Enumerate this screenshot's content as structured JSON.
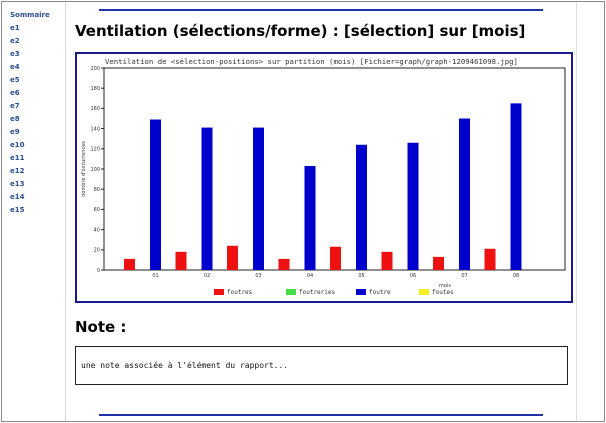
{
  "sidebar": {
    "items": [
      {
        "label": "Sommaire"
      },
      {
        "label": "e1"
      },
      {
        "label": "e2"
      },
      {
        "label": "e3"
      },
      {
        "label": "e4"
      },
      {
        "label": "e5"
      },
      {
        "label": "e6"
      },
      {
        "label": "e7"
      },
      {
        "label": "e8"
      },
      {
        "label": "e9"
      },
      {
        "label": "e10"
      },
      {
        "label": "e11"
      },
      {
        "label": "e12"
      },
      {
        "label": "e13"
      },
      {
        "label": "e14"
      },
      {
        "label": "e15"
      }
    ]
  },
  "main": {
    "title": "Ventilation (sélections/forme) : [sélection] sur [mois]"
  },
  "chart_data": {
    "type": "bar",
    "title": "Ventilation de <sélection-positions> sur partition (mois) [Fichier=graph/graph-1209461098.jpg]",
    "xlabel": "mois",
    "ylabel": "nombre d'occurrences",
    "ylim": [
      0,
      200
    ],
    "yticks": [
      0,
      20,
      40,
      60,
      80,
      100,
      120,
      140,
      160,
      180,
      200
    ],
    "categories": [
      "01",
      "02",
      "03",
      "04",
      "05",
      "06",
      "07",
      "08"
    ],
    "series": [
      {
        "name": "foutres",
        "color": "#ee1111",
        "values": [
          11,
          18,
          24,
          11,
          23,
          18,
          13,
          21
        ]
      },
      {
        "name": "foutreries",
        "color": "#44dd44",
        "values": [
          0,
          0,
          0,
          0,
          0,
          0,
          0,
          0
        ]
      },
      {
        "name": "foutre",
        "color": "#0000cc",
        "values": [
          149,
          141,
          141,
          103,
          124,
          126,
          150,
          165
        ]
      },
      {
        "name": "foutes",
        "color": "#eeee22",
        "values": [
          0,
          0,
          0,
          0,
          0,
          0,
          0,
          0
        ]
      }
    ],
    "grid": false,
    "legend_position": "bottom"
  },
  "note": {
    "heading": "Note :",
    "text": "une note associée à l'élément du rapport..."
  }
}
